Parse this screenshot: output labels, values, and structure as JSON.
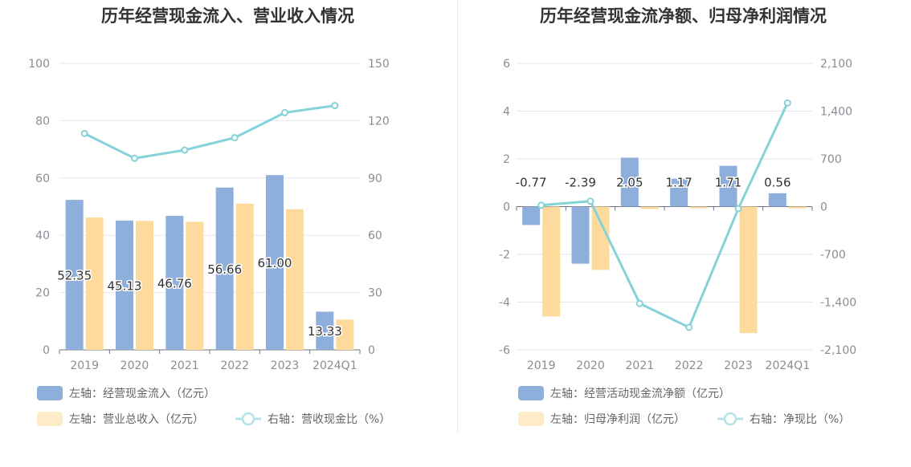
{
  "chart_data": [
    {
      "type": "bar",
      "title": "历年经营现金流入、营业收入情况",
      "categories": [
        "2019",
        "2020",
        "2021",
        "2022",
        "2023",
        "2024Q1"
      ],
      "series": [
        {
          "name": "左轴：经营现金流入（亿元）",
          "axis": "left",
          "type": "bar",
          "color": "#8eaedc",
          "values": [
            52.35,
            45.13,
            46.76,
            56.66,
            61.0,
            13.33
          ],
          "labels": [
            "52.35",
            "45.13",
            "46.76",
            "56.66",
            "61.00",
            "13.33"
          ]
        },
        {
          "name": "左轴：营业总收入（亿元）",
          "axis": "left",
          "type": "bar",
          "color": "#fedb9c",
          "values": [
            46.2,
            45.0,
            44.7,
            51.0,
            49.1,
            10.6
          ]
        },
        {
          "name": "右轴：营收现金比（%）",
          "axis": "right",
          "type": "line",
          "color": "#85d2d8",
          "values": [
            113.3,
            100.3,
            104.6,
            111.1,
            124.2,
            127.9
          ]
        }
      ],
      "left_axis": {
        "min": 0,
        "max": 100,
        "ticks": [
          "0",
          "20",
          "40",
          "60",
          "80",
          "100"
        ]
      },
      "right_axis": {
        "min": 0,
        "max": 150,
        "ticks": [
          "0",
          "30",
          "60",
          "90",
          "120",
          "150"
        ]
      },
      "grid": true,
      "legend_position": "bottom-left"
    },
    {
      "type": "bar",
      "title": "历年经营现金流净额、归母净利润情况",
      "categories": [
        "2019",
        "2020",
        "2021",
        "2022",
        "2023",
        "2024Q1"
      ],
      "series": [
        {
          "name": "左轴：经营活动现金流净额（亿元）",
          "axis": "left",
          "type": "bar",
          "color": "#8eaedc",
          "values": [
            -0.77,
            -2.39,
            2.05,
            1.17,
            1.71,
            0.56
          ],
          "labels": [
            "-0.77",
            "-2.39",
            "2.05",
            "1.17",
            "1.71",
            "0.56"
          ]
        },
        {
          "name": "左轴：归母净利润（亿元）",
          "axis": "left",
          "type": "bar",
          "color": "#fedb9c",
          "values": [
            -4.6,
            -2.65,
            -0.1,
            -0.05,
            -5.3,
            -0.05
          ]
        },
        {
          "name": "右轴：净现比（%）",
          "axis": "right",
          "type": "line",
          "color": "#85d2d8",
          "values": [
            20,
            80,
            -1420,
            -1770,
            -30,
            1520
          ]
        }
      ],
      "left_axis": {
        "min": -6,
        "max": 6,
        "ticks": [
          "-6",
          "-4",
          "-2",
          "0",
          "2",
          "4",
          "6"
        ]
      },
      "right_axis": {
        "min": -2100,
        "max": 2100,
        "ticks": [
          "-2,100",
          "-1,400",
          "-700",
          "0",
          "700",
          "1,400",
          "2,100"
        ]
      },
      "grid": true,
      "legend_position": "bottom-left"
    }
  ]
}
